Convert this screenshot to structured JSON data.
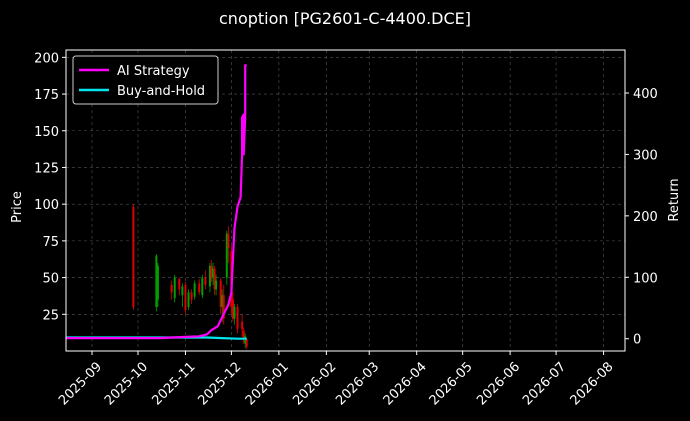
{
  "chart_data": {
    "type": "line",
    "title": "cnoption [PG2601-C-4400.DCE]",
    "ylabel": "Price",
    "y2label": "Return",
    "ylim": [
      0,
      205
    ],
    "y2lim": [
      -20,
      470
    ],
    "xlim": [
      "2025-08-15",
      "2026-08-15"
    ],
    "x_ticks": [
      "2025-09",
      "2025-10",
      "2025-11",
      "2025-12",
      "2026-01",
      "2026-02",
      "2026-03",
      "2026-04",
      "2026-05",
      "2026-06",
      "2026-07",
      "2026-08"
    ],
    "y_ticks": [
      25,
      50,
      75,
      100,
      125,
      150,
      175,
      200
    ],
    "y2_ticks": [
      0,
      100,
      200,
      300,
      400
    ],
    "grid": true,
    "legend_position": "top-left",
    "colors": {
      "ai_strategy": "#ff00ff",
      "buy_and_hold": "#00e5ee",
      "candle_up": "#00a000",
      "candle_down": "#e00000",
      "background": "#000000",
      "grid": "#555555"
    },
    "series": [
      {
        "name": "AI Strategy",
        "axis": "right",
        "points": [
          [
            "2025-08-15",
            1
          ],
          [
            "2025-09-15",
            1
          ],
          [
            "2025-10-15",
            1
          ],
          [
            "2025-11-01",
            3
          ],
          [
            "2025-11-10",
            4
          ],
          [
            "2025-11-15",
            7
          ],
          [
            "2025-11-18",
            14
          ],
          [
            "2025-11-22",
            20
          ],
          [
            "2025-11-26",
            40
          ],
          [
            "2025-11-29",
            55
          ],
          [
            "2025-12-01",
            75
          ],
          [
            "2025-12-02",
            130
          ],
          [
            "2025-12-03",
            180
          ],
          [
            "2025-12-05",
            215
          ],
          [
            "2025-12-07",
            230
          ],
          [
            "2025-12-08",
            300
          ],
          [
            "2025-12-08",
            360
          ],
          [
            "2025-12-09",
            365
          ],
          [
            "2025-12-09",
            300
          ],
          [
            "2025-12-10",
            360
          ],
          [
            "2025-12-10",
            445
          ],
          [
            "2025-12-11",
            445
          ]
        ]
      },
      {
        "name": "Buy-and-Hold",
        "axis": "right",
        "points": [
          [
            "2025-08-15",
            2
          ],
          [
            "2025-11-15",
            2
          ],
          [
            "2025-11-25",
            1
          ],
          [
            "2025-12-05",
            0
          ],
          [
            "2025-12-11",
            0
          ]
        ]
      }
    ],
    "candles": [
      {
        "date": "2025-09-28",
        "open": 98,
        "close": 30,
        "high": 100,
        "low": 28
      },
      {
        "date": "2025-10-13",
        "open": 30,
        "close": 65,
        "high": 66,
        "low": 27
      },
      {
        "date": "2025-10-14",
        "open": 35,
        "close": 58,
        "high": 60,
        "low": 30
      },
      {
        "date": "2025-10-23",
        "open": 45,
        "close": 40,
        "high": 48,
        "low": 35
      },
      {
        "date": "2025-10-25",
        "open": 36,
        "close": 50,
        "high": 52,
        "low": 33
      },
      {
        "date": "2025-10-28",
        "open": 49,
        "close": 42,
        "high": 50,
        "low": 38
      },
      {
        "date": "2025-10-30",
        "open": 38,
        "close": 44,
        "high": 46,
        "low": 30
      },
      {
        "date": "2025-11-01",
        "open": 45,
        "close": 28,
        "high": 47,
        "low": 25
      },
      {
        "date": "2025-11-03",
        "open": 30,
        "close": 40,
        "high": 42,
        "low": 28
      },
      {
        "date": "2025-11-05",
        "open": 40,
        "close": 35,
        "high": 42,
        "low": 32
      },
      {
        "date": "2025-11-07",
        "open": 37,
        "close": 46,
        "high": 48,
        "low": 35
      },
      {
        "date": "2025-11-10",
        "open": 46,
        "close": 40,
        "high": 49,
        "low": 38
      },
      {
        "date": "2025-11-12",
        "open": 38,
        "close": 50,
        "high": 52,
        "low": 36
      },
      {
        "date": "2025-11-14",
        "open": 50,
        "close": 45,
        "high": 55,
        "low": 42
      },
      {
        "date": "2025-11-17",
        "open": 44,
        "close": 58,
        "high": 60,
        "low": 40
      },
      {
        "date": "2025-11-18",
        "open": 58,
        "close": 50,
        "high": 62,
        "low": 47
      },
      {
        "date": "2025-11-19",
        "open": 50,
        "close": 56,
        "high": 60,
        "low": 45
      },
      {
        "date": "2025-11-20",
        "open": 56,
        "close": 42,
        "high": 58,
        "low": 38
      },
      {
        "date": "2025-11-21",
        "open": 42,
        "close": 48,
        "high": 52,
        "low": 38
      },
      {
        "date": "2025-11-24",
        "open": 48,
        "close": 30,
        "high": 50,
        "low": 25
      },
      {
        "date": "2025-11-25",
        "open": 30,
        "close": 38,
        "high": 42,
        "low": 20
      },
      {
        "date": "2025-11-26",
        "open": 38,
        "close": 22,
        "high": 45,
        "low": 18
      },
      {
        "date": "2025-11-28",
        "open": 50,
        "close": 80,
        "high": 82,
        "low": 45
      },
      {
        "date": "2025-11-29",
        "open": 80,
        "close": 70,
        "high": 85,
        "low": 60
      },
      {
        "date": "2025-12-01",
        "open": 68,
        "close": 30,
        "high": 72,
        "low": 25
      },
      {
        "date": "2025-12-02",
        "open": 35,
        "close": 22,
        "high": 40,
        "low": 20
      },
      {
        "date": "2025-12-03",
        "open": 22,
        "close": 30,
        "high": 32,
        "low": 18
      },
      {
        "date": "2025-12-05",
        "open": 30,
        "close": 15,
        "high": 32,
        "low": 12
      },
      {
        "date": "2025-12-08",
        "open": 20,
        "close": 15,
        "high": 25,
        "low": 10
      },
      {
        "date": "2025-12-09",
        "open": 14,
        "close": 8,
        "high": 16,
        "low": 5
      },
      {
        "date": "2025-12-10",
        "open": 5,
        "close": 10,
        "high": 12,
        "low": 2
      },
      {
        "date": "2025-12-11",
        "open": 8,
        "close": 3,
        "high": 9,
        "low": 1
      }
    ]
  }
}
